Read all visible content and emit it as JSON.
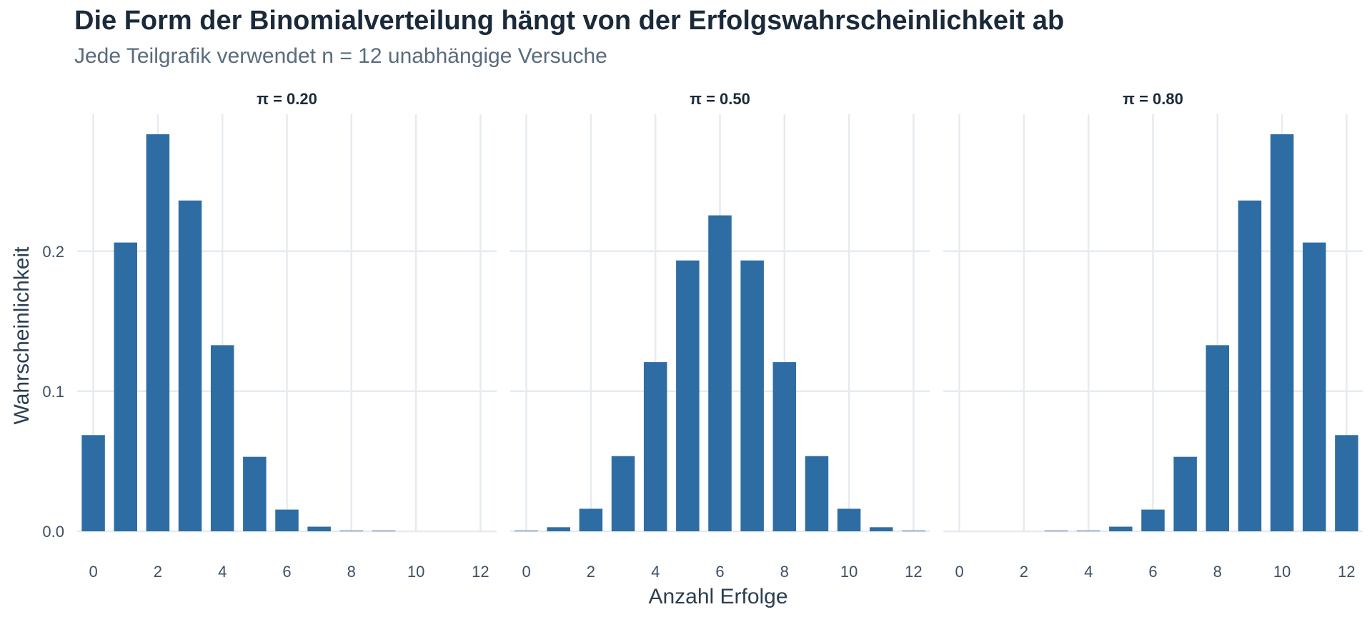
{
  "header": {
    "title": "Die Form der Binomialverteilung hängt von der Erfolgswahrscheinlichkeit ab",
    "subtitle": "Jede Teilgrafik verwendet n = 12 unabhängige Versuche"
  },
  "colors": {
    "bar": "#2e6da4",
    "grid": "#e6ebf0"
  },
  "chart_data": {
    "type": "bar",
    "xlabel": "Anzahl Erfolge",
    "ylabel": "Wahrscheinlichkeit",
    "xlim": [
      -0.5,
      12.5
    ],
    "ylim": [
      0,
      0.283
    ],
    "x_ticks": [
      "0",
      "2",
      "4",
      "6",
      "8",
      "10",
      "12"
    ],
    "y_ticks": [
      "0.0",
      "0.1",
      "0.2"
    ],
    "categories": [
      0,
      1,
      2,
      3,
      4,
      5,
      6,
      7,
      8,
      9,
      10,
      11,
      12
    ],
    "facets": [
      {
        "label": "π = 0.20",
        "values": [
          0.0687,
          0.2062,
          0.2835,
          0.2362,
          0.1329,
          0.0532,
          0.0155,
          0.0033,
          0.0005,
          0.0001,
          0.0,
          0.0,
          0.0
        ]
      },
      {
        "label": "π = 0.50",
        "values": [
          0.0002,
          0.0029,
          0.0161,
          0.0537,
          0.1208,
          0.1934,
          0.2256,
          0.1934,
          0.1208,
          0.0537,
          0.0161,
          0.0029,
          0.0002
        ]
      },
      {
        "label": "π = 0.80",
        "values": [
          0.0,
          0.0,
          0.0,
          0.0001,
          0.0005,
          0.0033,
          0.0155,
          0.0532,
          0.1329,
          0.2362,
          0.2835,
          0.2062,
          0.0687
        ]
      }
    ]
  }
}
